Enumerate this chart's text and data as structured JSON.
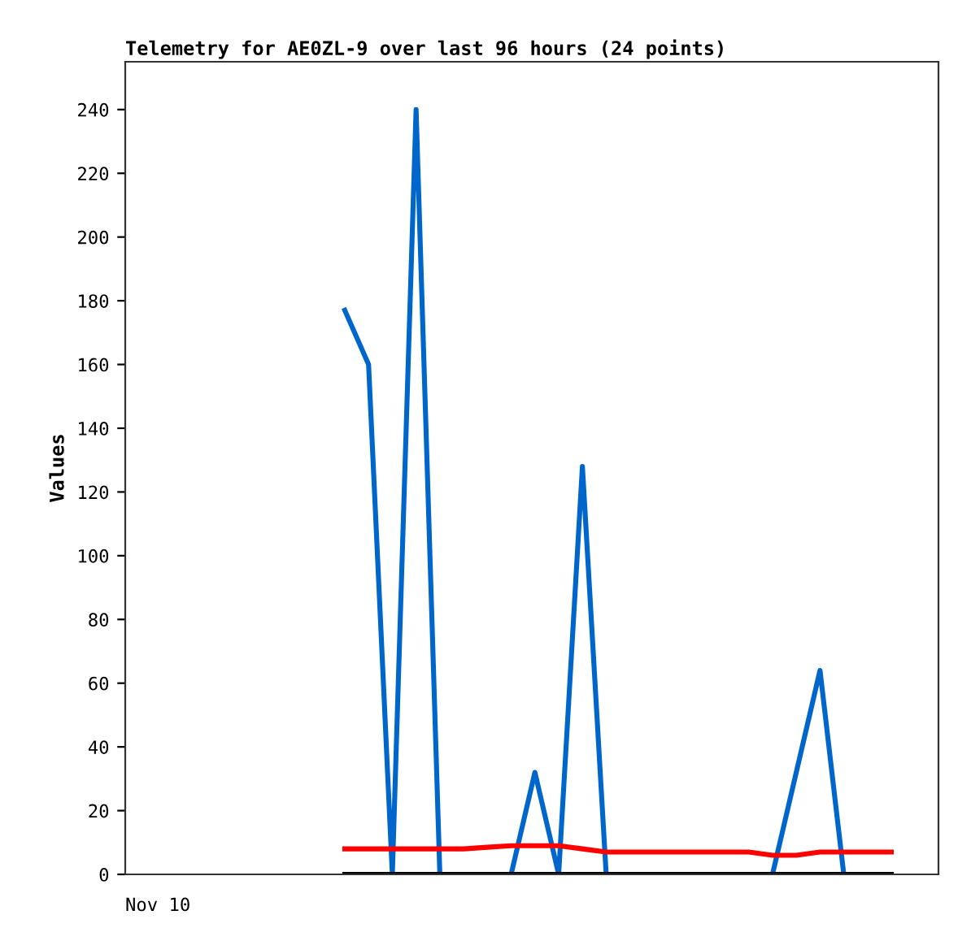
{
  "chart_data": {
    "type": "line",
    "title": "Telemetry for AE0ZL-9 over last 96 hours (24 points)",
    "ylabel": "Values",
    "categories": [
      null,
      null,
      null,
      null,
      null,
      null,
      null,
      null,
      null,
      null,
      null,
      null,
      null,
      null,
      null,
      null,
      null,
      null,
      null,
      null,
      null,
      null,
      null,
      null
    ],
    "annotations": [
      "Nov 10"
    ],
    "series": [
      {
        "color": "#0066cc",
        "values": [
          177,
          160,
          0,
          240,
          0,
          0,
          0,
          0,
          32,
          0,
          128,
          0,
          0,
          0,
          0,
          0,
          0,
          0,
          0,
          32,
          64,
          0,
          0,
          0
        ]
      },
      {
        "color": "#ff0000",
        "values": [
          8,
          8,
          8,
          8,
          8,
          8,
          8.5,
          9,
          9,
          9,
          8,
          7,
          7,
          7,
          7,
          7,
          7,
          7,
          6,
          6,
          7,
          7,
          7,
          7
        ]
      },
      {
        "color": "#000000",
        "values": [
          0,
          0,
          0,
          0,
          0,
          0,
          0,
          0,
          0,
          0,
          0,
          0,
          0,
          0,
          0,
          0,
          0,
          0,
          0,
          0,
          0,
          0,
          0,
          0
        ]
      }
    ],
    "ylim": [
      0,
      255
    ],
    "yticks": [
      0,
      20,
      40,
      60,
      80,
      100,
      120,
      140,
      160,
      180,
      200,
      220,
      240
    ],
    "grid": false,
    "legend": false
  }
}
